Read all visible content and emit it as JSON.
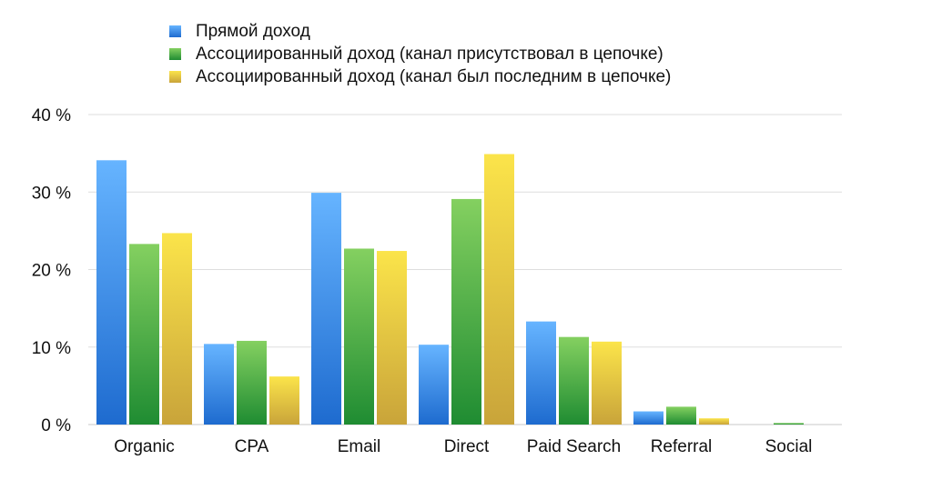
{
  "chart_data": {
    "type": "bar",
    "categories": [
      "Organic",
      "CPA",
      "Email",
      "Direct",
      "Paid Search",
      "Referral",
      "Social"
    ],
    "series": [
      {
        "name": "Прямой доход",
        "values": [
          34.1,
          10.4,
          29.9,
          10.3,
          13.3,
          1.7,
          0.0
        ],
        "color_light": "#66b4ff",
        "color_dark": "#1e6bcf"
      },
      {
        "name": "Ассоциированный доход (канал присутствовал в цепочке)",
        "values": [
          23.3,
          10.8,
          22.7,
          29.1,
          11.3,
          2.3,
          0.2
        ],
        "color_light": "#84d060",
        "color_dark": "#1f8c32"
      },
      {
        "name": "Ассоциированный доход (канал был последним в цепочке)",
        "values": [
          24.7,
          6.2,
          22.4,
          34.9,
          10.7,
          0.8,
          0.0
        ],
        "color_light": "#fbe44a",
        "color_dark": "#c9a43a"
      }
    ],
    "ylim": [
      0,
      40
    ],
    "yticks": [
      0,
      10,
      20,
      30,
      40
    ],
    "ytick_labels": [
      "0 %",
      "10 %",
      "20 %",
      "30 %",
      "40 %"
    ],
    "grid": true,
    "legend_position": "top"
  }
}
